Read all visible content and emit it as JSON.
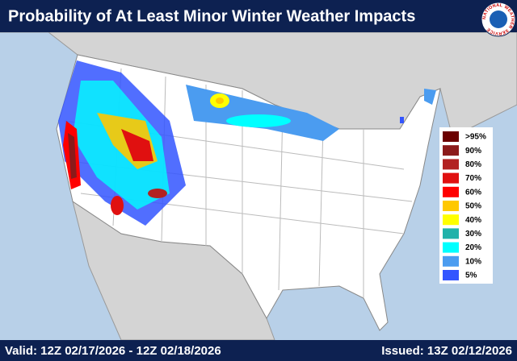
{
  "header": {
    "title": "Probability of At Least Minor Winter Weather Impacts",
    "logo_text": "NATIONAL WEATHER SERVICE"
  },
  "legend": {
    "items": [
      {
        "label": ">95%",
        "color": "#6b0000"
      },
      {
        "label": "90%",
        "color": "#8b1a1a"
      },
      {
        "label": "80%",
        "color": "#b22222"
      },
      {
        "label": "70%",
        "color": "#e01010"
      },
      {
        "label": "60%",
        "color": "#ff0000"
      },
      {
        "label": "50%",
        "color": "#ffc800"
      },
      {
        "label": "40%",
        "color": "#ffff00"
      },
      {
        "label": "30%",
        "color": "#20b2aa"
      },
      {
        "label": "20%",
        "color": "#00ffff"
      },
      {
        "label": "10%",
        "color": "#4b9cf0"
      },
      {
        "label": "5%",
        "color": "#3355ff"
      }
    ]
  },
  "footer": {
    "valid": "Valid: 12Z 02/17/2026  - 12Z 02/18/2026",
    "issued": "Issued: 13Z 02/12/2026"
  }
}
